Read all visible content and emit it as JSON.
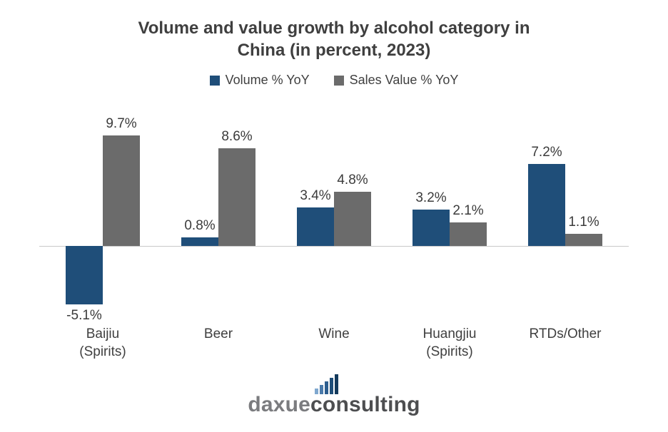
{
  "chart_data": {
    "type": "bar",
    "title": "Volume and value growth by alcohol category in\nChina (in percent, 2023)",
    "categories": [
      "Baijiu (Spirits)",
      "Beer",
      "Wine",
      "Huangjiu\n(Spirits)",
      "RTDs/Other"
    ],
    "series": [
      {
        "name": "Volume % YoY",
        "color": "#1f4e79",
        "values": [
          -5.1,
          0.8,
          3.4,
          3.2,
          7.2
        ]
      },
      {
        "name": "Sales Value % YoY",
        "color": "#6b6b6b",
        "values": [
          9.7,
          8.6,
          4.8,
          2.1,
          1.1
        ]
      }
    ],
    "value_suffix": "%",
    "ylim": [
      -6,
      11
    ],
    "grid": false,
    "legend_position": "top",
    "axis_color": "#c9c9c9"
  },
  "logo": {
    "part1": "daxue",
    "part2": "consulting"
  }
}
